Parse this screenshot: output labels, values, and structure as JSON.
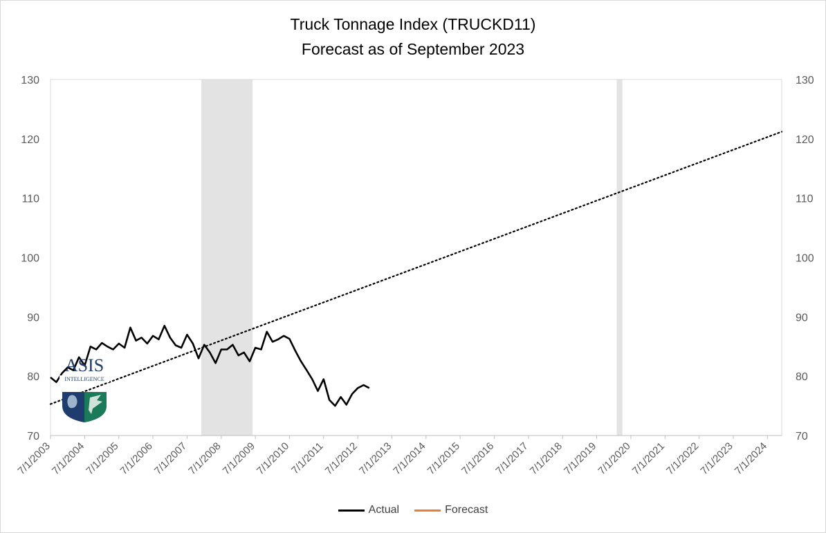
{
  "chart_data": {
    "type": "line",
    "title": "Truck Tonnage Index (TRUCKD11)",
    "subtitle": "Forecast as of September 2023",
    "ylim": [
      70,
      130
    ],
    "yticks": [
      70,
      80,
      90,
      100,
      110,
      120,
      130
    ],
    "secondary_axis_ticks": [
      70,
      80,
      90,
      100,
      110,
      120,
      130
    ],
    "xlim": [
      "2003-07-01",
      "2024-12-01"
    ],
    "xticks": [
      "7/1/2003",
      "7/1/2004",
      "7/1/2005",
      "7/1/2006",
      "7/1/2007",
      "7/1/2008",
      "7/1/2009",
      "7/1/2010",
      "7/1/2011",
      "7/1/2012",
      "7/1/2013",
      "7/1/2014",
      "7/1/2015",
      "7/1/2016",
      "7/1/2017",
      "7/1/2018",
      "7/1/2019",
      "7/1/2020",
      "7/1/2021",
      "7/1/2022",
      "7/1/2023",
      "7/1/2024"
    ],
    "grid": false,
    "legend": "bottom-center",
    "recession_bands": [
      {
        "start": "2007-12-01",
        "end": "2009-06-01"
      },
      {
        "start": "2020-02-01",
        "end": "2020-04-01"
      }
    ],
    "trendline": {
      "style": "dotted",
      "start": {
        "x": "2003-07-01",
        "y": 75.3
      },
      "end": {
        "x": "2024-12-01",
        "y": 121.2
      }
    },
    "series": [
      {
        "name": "Actual",
        "color": "#000000",
        "points": [
          [
            "2003-07-01",
            79.8
          ],
          [
            "2003-09-01",
            79.0
          ],
          [
            "2003-11-01",
            80.5
          ],
          [
            "2004-01-01",
            81.5
          ],
          [
            "2004-03-01",
            81.0
          ],
          [
            "2004-05-01",
            83.2
          ],
          [
            "2004-07-01",
            81.8
          ],
          [
            "2004-09-01",
            85.0
          ],
          [
            "2004-11-01",
            84.5
          ],
          [
            "2005-01-01",
            85.6
          ],
          [
            "2005-03-01",
            85.0
          ],
          [
            "2005-05-01",
            84.5
          ],
          [
            "2005-07-01",
            85.5
          ],
          [
            "2005-09-01",
            84.8
          ],
          [
            "2005-11-01",
            88.2
          ],
          [
            "2006-01-01",
            86.0
          ],
          [
            "2006-03-01",
            86.5
          ],
          [
            "2006-05-01",
            85.5
          ],
          [
            "2006-07-01",
            86.8
          ],
          [
            "2006-09-01",
            86.2
          ],
          [
            "2006-11-01",
            88.5
          ],
          [
            "2007-01-01",
            86.5
          ],
          [
            "2007-03-01",
            85.2
          ],
          [
            "2007-05-01",
            84.8
          ],
          [
            "2007-07-01",
            87.0
          ],
          [
            "2007-09-01",
            85.5
          ],
          [
            "2007-11-01",
            83.0
          ],
          [
            "2008-01-01",
            85.3
          ],
          [
            "2008-03-01",
            84.0
          ],
          [
            "2008-05-01",
            82.2
          ],
          [
            "2008-07-01",
            84.5
          ],
          [
            "2008-09-01",
            84.5
          ],
          [
            "2008-11-01",
            85.3
          ],
          [
            "2009-01-01",
            83.5
          ],
          [
            "2009-03-01",
            84.0
          ],
          [
            "2009-05-01",
            82.5
          ],
          [
            "2009-07-01",
            84.8
          ],
          [
            "2009-09-01",
            84.5
          ],
          [
            "2009-11-01",
            87.5
          ],
          [
            "2010-01-01",
            85.8
          ],
          [
            "2010-03-01",
            86.2
          ],
          [
            "2010-05-01",
            86.8
          ],
          [
            "2010-07-01",
            86.3
          ],
          [
            "2010-09-01",
            84.3
          ],
          [
            "2010-11-01",
            82.5
          ],
          [
            "2011-01-01",
            81.0
          ],
          [
            "2011-03-01",
            79.5
          ],
          [
            "2011-05-01",
            77.5
          ],
          [
            "2011-07-01",
            79.5
          ],
          [
            "2011-09-01",
            76.0
          ],
          [
            "2011-11-01",
            75.0
          ],
          [
            "2012-01-01",
            76.5
          ],
          [
            "2012-03-01",
            75.2
          ],
          [
            "2012-05-01",
            77.0
          ],
          [
            "2012-07-01",
            78.0
          ],
          [
            "2012-09-01",
            78.5
          ],
          [
            "2012-11-01",
            78.0
          ]
        ]
      },
      {
        "name": "Forecast",
        "color": "#ed7d31",
        "points": []
      }
    ]
  },
  "logo": {
    "text_top": "ASIS",
    "text_sub": "INTELLIGENCE",
    "colors": {
      "navy": "#1f3c6e",
      "green": "#1b7a5a",
      "steel": "#6e8aa8"
    }
  },
  "legend_labels": {
    "actual": "Actual",
    "forecast": "Forecast"
  }
}
